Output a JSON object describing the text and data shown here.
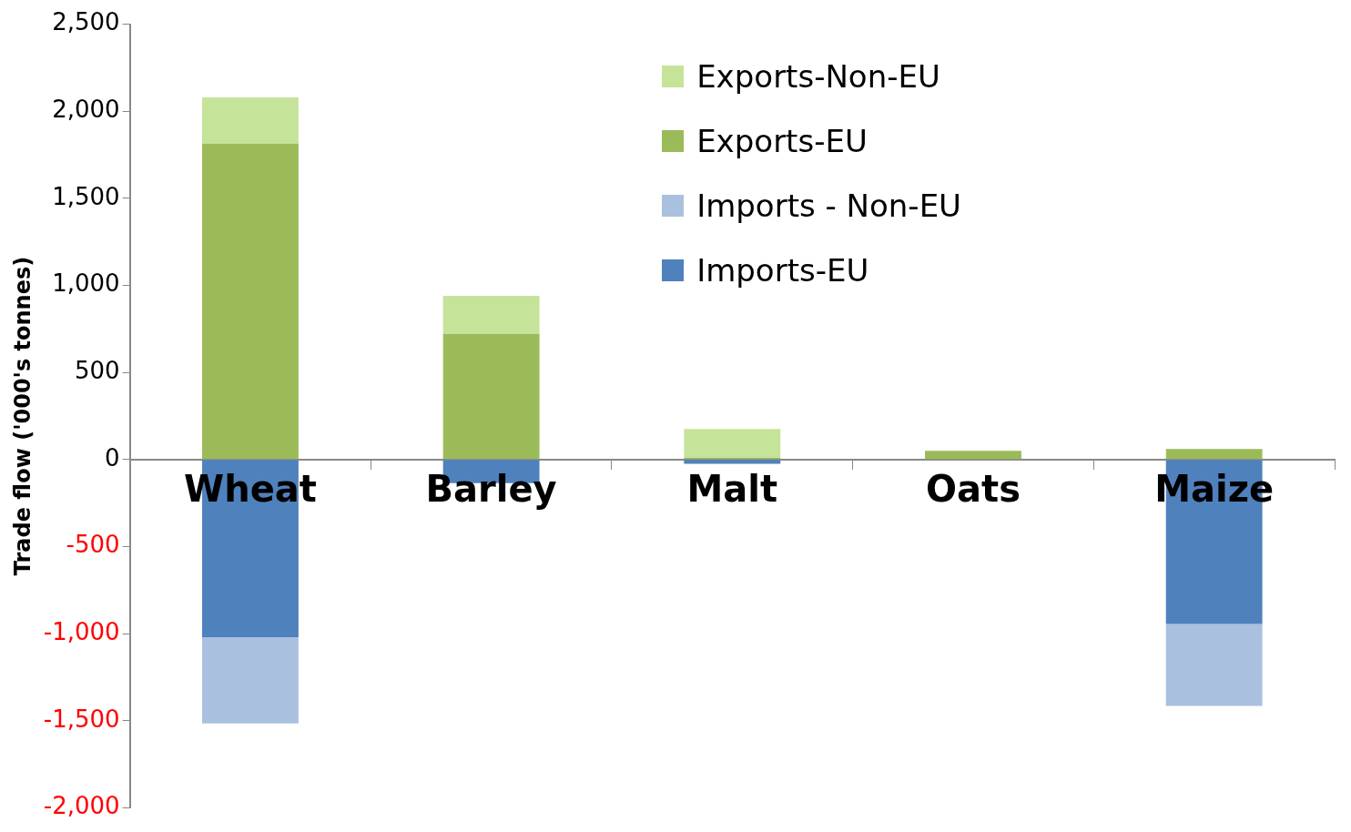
{
  "chart_data": {
    "type": "bar",
    "stacked": true,
    "ylabel": "Trade flow ('000's tonnes)",
    "categories": [
      "Wheat",
      "Barley",
      "Malt",
      "Oats",
      "Maize"
    ],
    "series": [
      {
        "name": "Imports-EU",
        "color": "#4f81bd",
        "values": [
          -1020,
          -135,
          -25,
          0,
          -945
        ]
      },
      {
        "name": "Imports - Non-EU",
        "color": "#a9c1df",
        "values": [
          -495,
          0,
          0,
          0,
          -470
        ]
      },
      {
        "name": "Exports-EU",
        "color": "#9bbb59",
        "values": [
          1815,
          720,
          10,
          50,
          60
        ]
      },
      {
        "name": "Exports-Non-EU",
        "color": "#c6e39a",
        "values": [
          265,
          220,
          165,
          0,
          0
        ]
      }
    ],
    "ylim": [
      -2000,
      2500
    ],
    "yticks": [
      {
        "value": -2000,
        "label": "-2,000"
      },
      {
        "value": -1500,
        "label": "-1,500"
      },
      {
        "value": -1000,
        "label": "-1,000"
      },
      -500,
      0,
      500,
      {
        "value": 1000,
        "label": "1,000"
      },
      {
        "value": 1500,
        "label": "1,500"
      },
      {
        "value": 2000,
        "label": "2,000"
      },
      {
        "value": 2500,
        "label": "2,500"
      }
    ],
    "grid": false,
    "legend": "top right"
  }
}
